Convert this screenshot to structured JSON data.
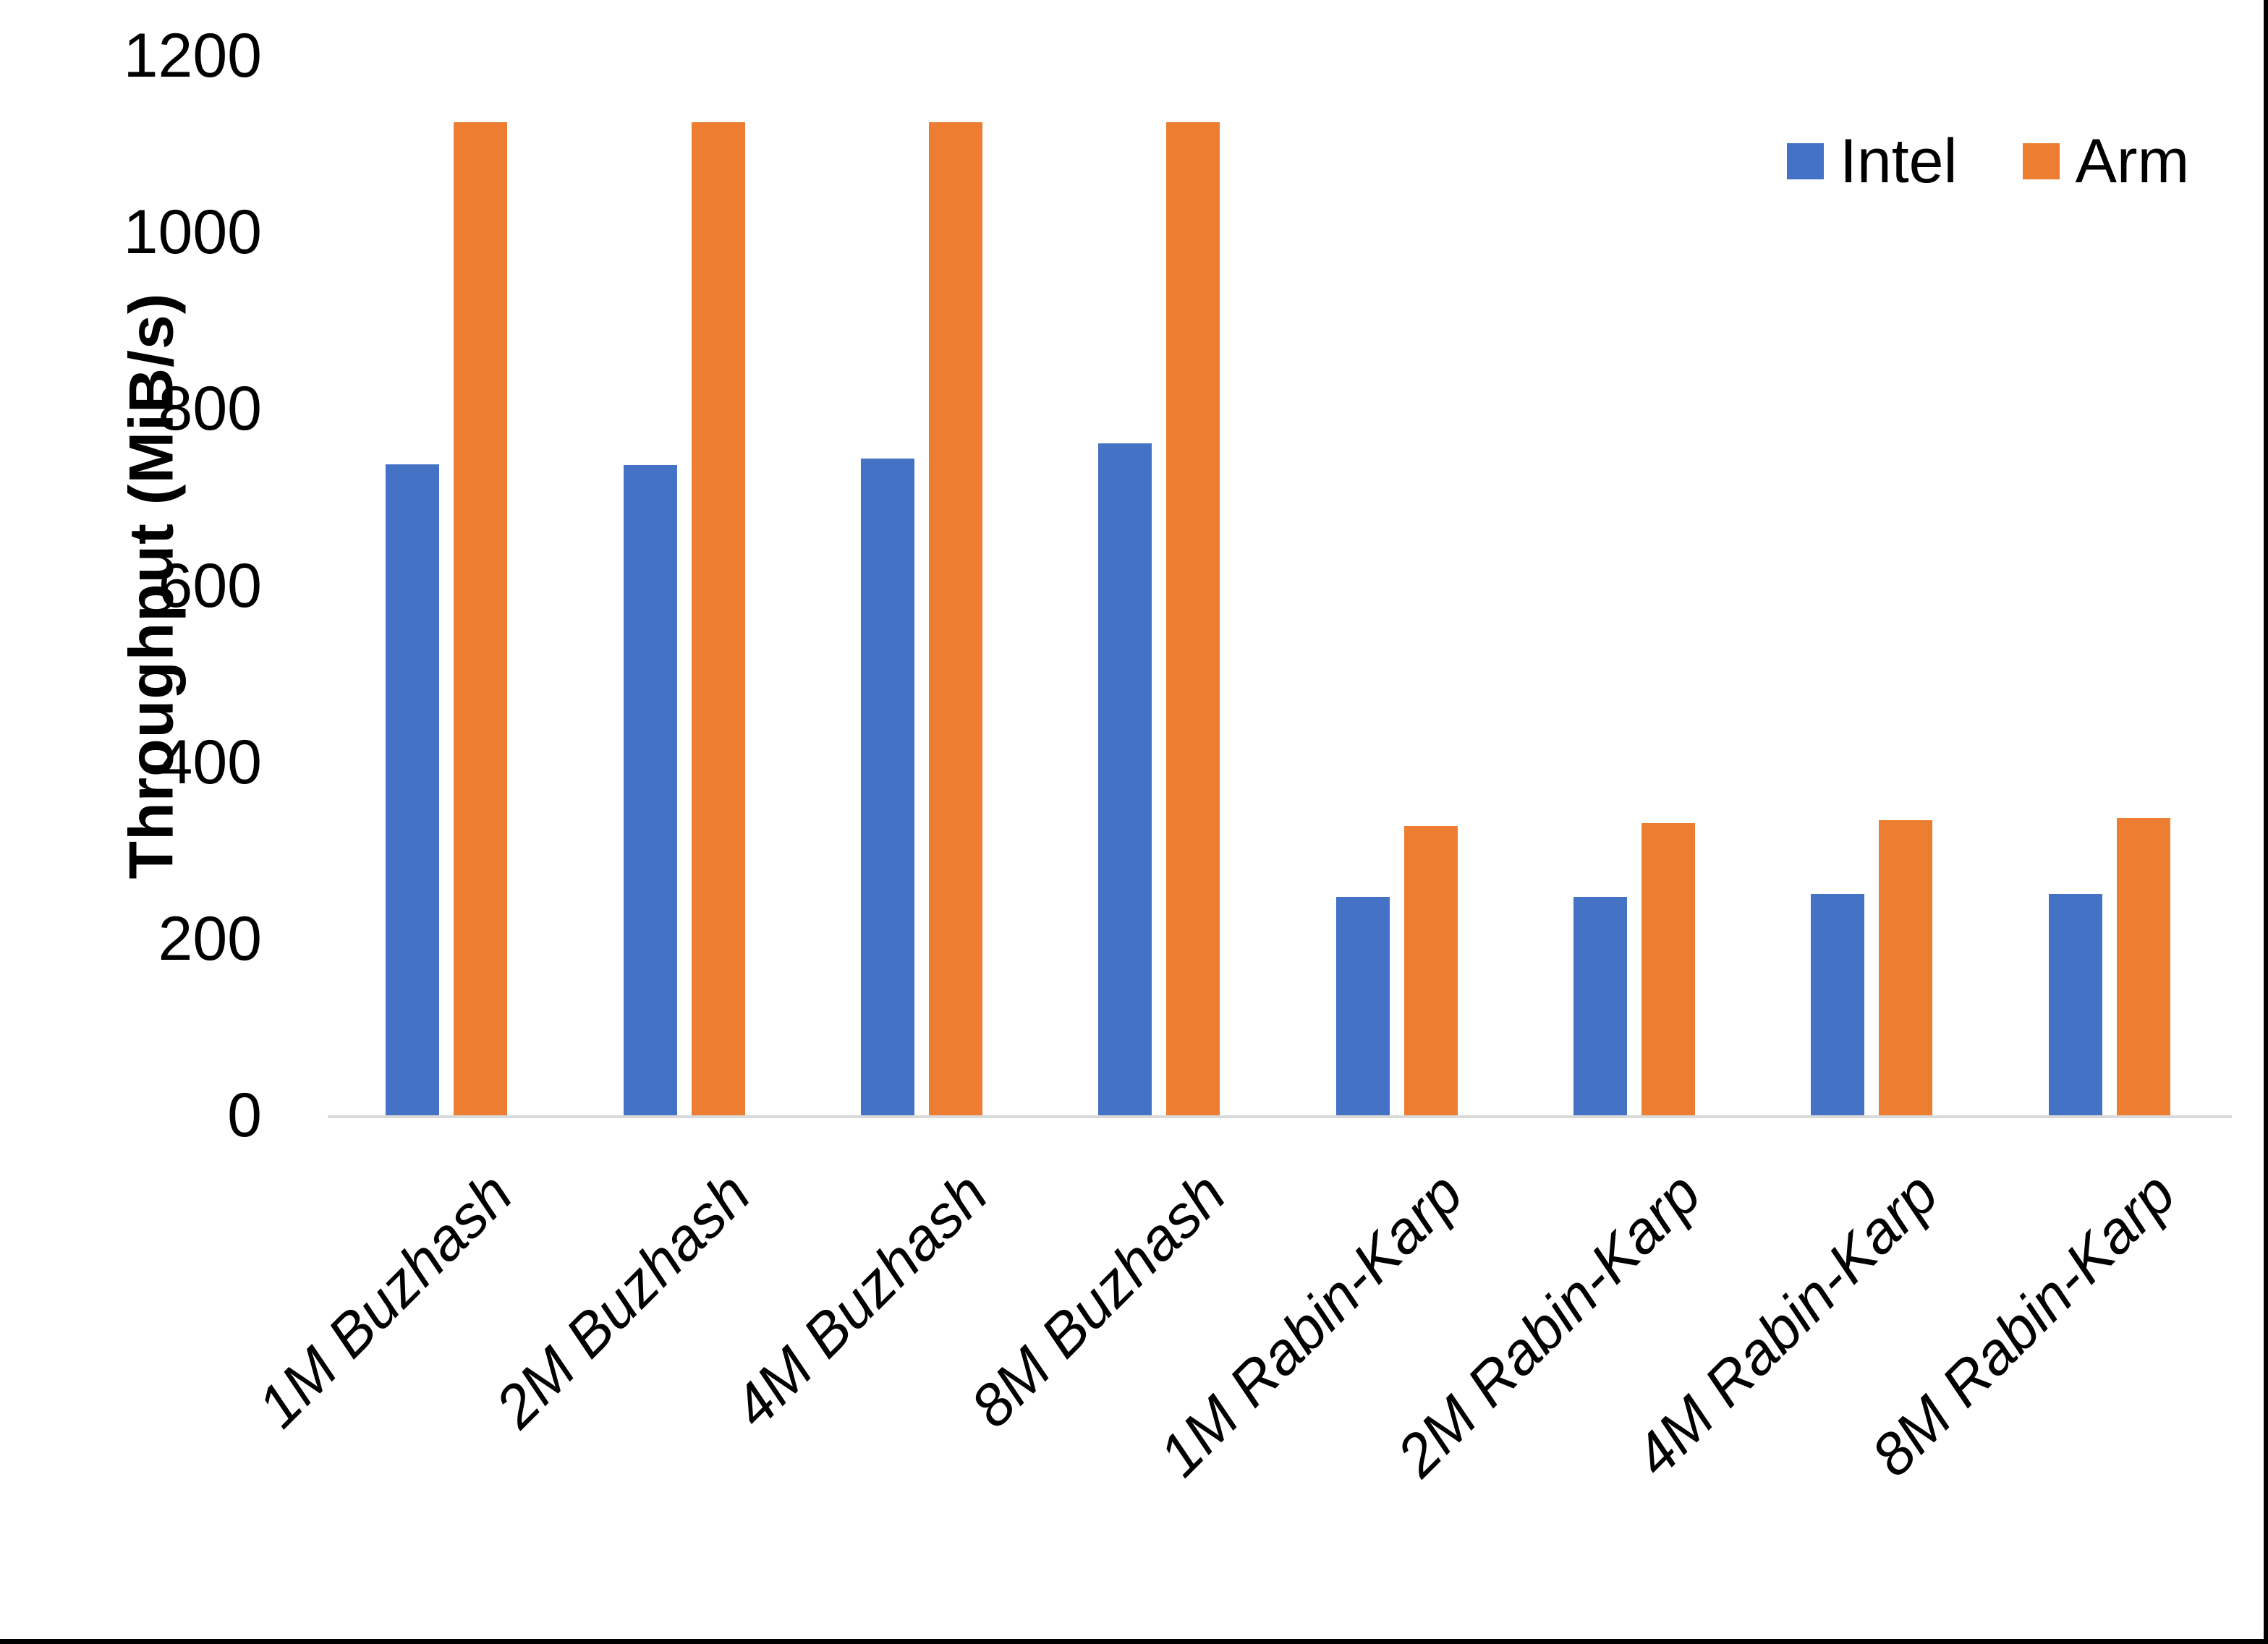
{
  "chart_data": {
    "type": "bar",
    "title": "",
    "ylabel": "Throughput (MiB/s)",
    "xlabel": "",
    "ylim": [
      0,
      1200
    ],
    "yticks": [
      0,
      200,
      400,
      600,
      800,
      1000,
      1200
    ],
    "grid": false,
    "legend_position": "top-right",
    "categories": [
      "1M Buzhash",
      "2M Buzhash",
      "4M Buzhash",
      "8M Buzhash",
      "1M Rabin-Karp",
      "2M Rabin-Karp",
      "4M Rabin-Karp",
      "8M Rabin-Karp"
    ],
    "series": [
      {
        "name": "Intel",
        "color": "#4472C4",
        "values": [
          737,
          736,
          744,
          761,
          247,
          247,
          251,
          251
        ]
      },
      {
        "name": "Arm",
        "color": "#ED7D31",
        "values": [
          1125,
          1125,
          1125,
          1125,
          328,
          331,
          334,
          337
        ]
      }
    ]
  },
  "colors": {
    "axis_line": "#D9D9D9",
    "text": "#000000",
    "background": "#FFFFFF",
    "page_border": "#000000"
  }
}
